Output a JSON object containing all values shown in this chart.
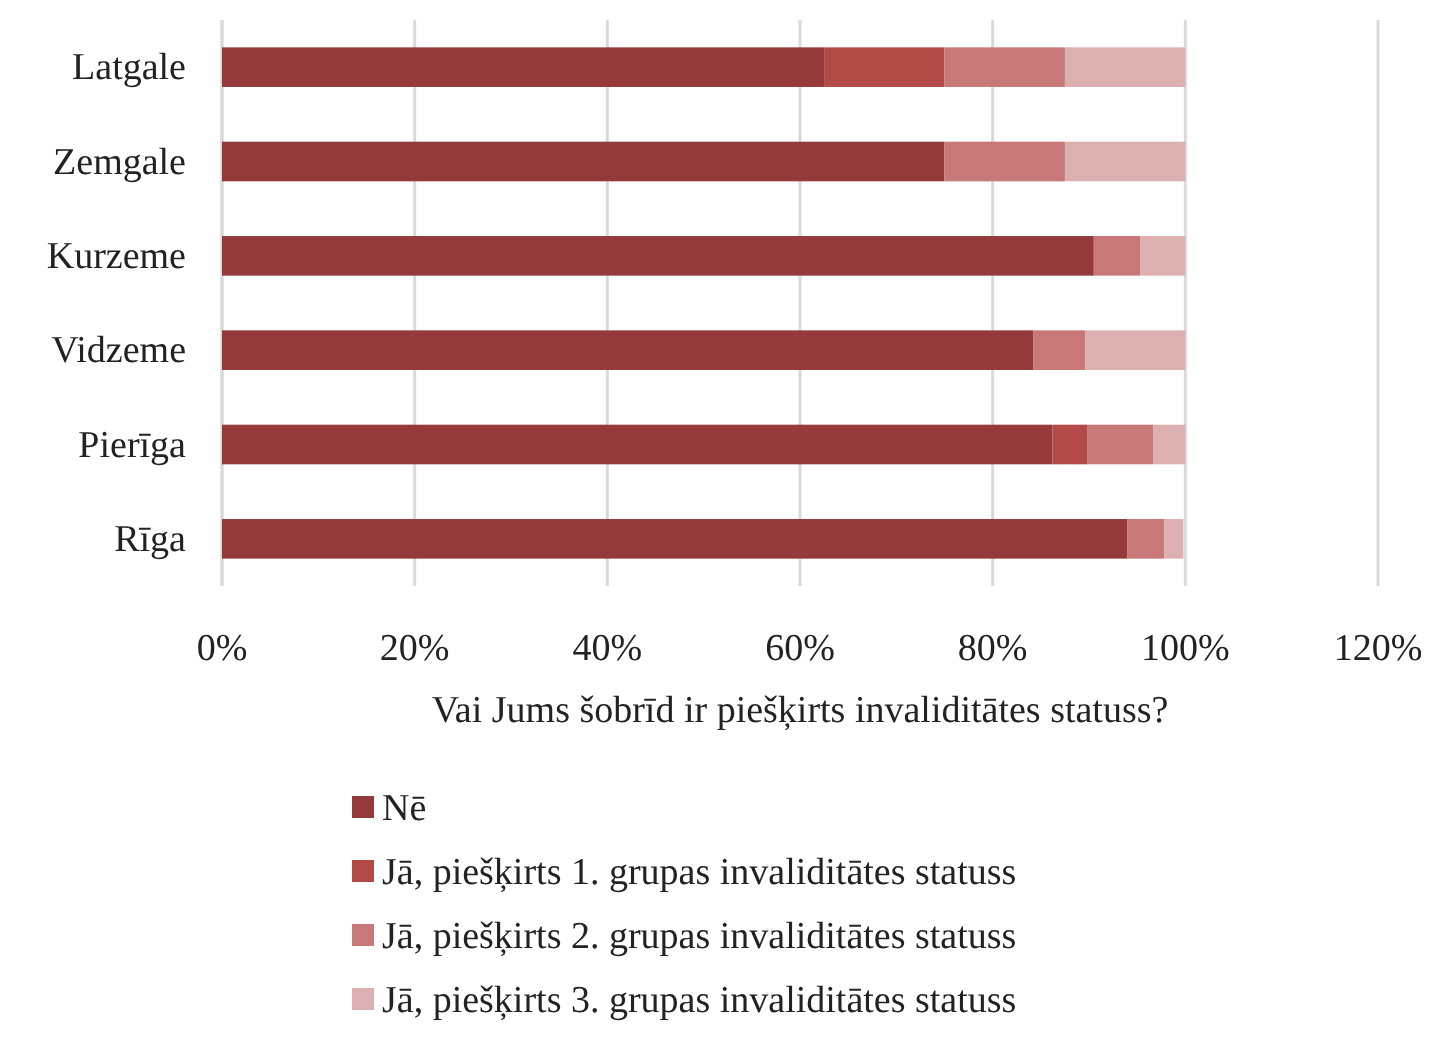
{
  "chart_data": {
    "type": "bar",
    "orientation": "horizontal",
    "stacked": true,
    "xlabel": "Vai Jums šobrīd ir piešķirts invaliditātes statuss?",
    "categories": [
      "Latgale",
      "Zemgale",
      "Kurzeme",
      "Vidzeme",
      "Pierīga",
      "Rīga"
    ],
    "series": [
      {
        "name": "Nē",
        "color": "#943a3a",
        "values": [
          62.5,
          75,
          90.5,
          84.2,
          86.2,
          94
        ]
      },
      {
        "name": "Jā, piešķirts 1. grupas invaliditātes statuss",
        "color": "#b24b48",
        "values": [
          12.5,
          0,
          0,
          0,
          3.6,
          0
        ]
      },
      {
        "name": "Jā, piešķirts 2. grupas invaliditātes statuss",
        "color": "#c87878",
        "values": [
          12.5,
          12.5,
          4.8,
          5.4,
          6.9,
          3.8
        ]
      },
      {
        "name": "Jā, piešķirts 3. grupas invaliditātes statuss",
        "color": "#dcb0b0",
        "values": [
          12.5,
          12.5,
          4.7,
          10.4,
          3.3,
          2
        ]
      }
    ],
    "xlim": [
      0,
      120
    ],
    "xticks": [
      {
        "value": 0,
        "label": "0%"
      },
      {
        "value": 20,
        "label": "20%"
      },
      {
        "value": 40,
        "label": "40%"
      },
      {
        "value": 60,
        "label": "60%"
      },
      {
        "value": 80,
        "label": "80%"
      },
      {
        "value": 100,
        "label": "100%"
      },
      {
        "value": 120,
        "label": "120%"
      }
    ],
    "grid": "x",
    "legend": "bottom"
  }
}
